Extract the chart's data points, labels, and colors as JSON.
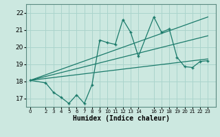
{
  "xlabel": "Humidex (Indice chaleur)",
  "bg_color": "#cce8e0",
  "grid_color": "#aad4cc",
  "line_color": "#1a7a6a",
  "x_ticks": [
    0,
    2,
    3,
    4,
    5,
    6,
    7,
    8,
    9,
    10,
    11,
    12,
    13,
    14,
    16,
    17,
    18,
    19,
    20,
    21,
    22,
    23
  ],
  "xlim": [
    -0.5,
    24.0
  ],
  "ylim": [
    16.5,
    22.5
  ],
  "y_ticks": [
    17,
    18,
    19,
    20,
    21,
    22
  ],
  "scatter_x": [
    0,
    2,
    3,
    4,
    5,
    6,
    7,
    8,
    9,
    10,
    11,
    12,
    13,
    14,
    16,
    17,
    18,
    19,
    20,
    21,
    22,
    23
  ],
  "scatter_y": [
    18.05,
    17.9,
    17.35,
    17.05,
    16.7,
    17.2,
    16.7,
    17.8,
    20.4,
    20.25,
    20.15,
    21.6,
    20.85,
    19.45,
    21.75,
    20.85,
    21.05,
    19.4,
    18.85,
    18.8,
    19.15,
    19.2
  ],
  "trend1_x": [
    0,
    23
  ],
  "trend1_y": [
    18.05,
    20.65
  ],
  "trend2_x": [
    0,
    23
  ],
  "trend2_y": [
    18.05,
    21.75
  ],
  "trend3_x": [
    0,
    23
  ],
  "trend3_y": [
    18.05,
    19.3
  ]
}
